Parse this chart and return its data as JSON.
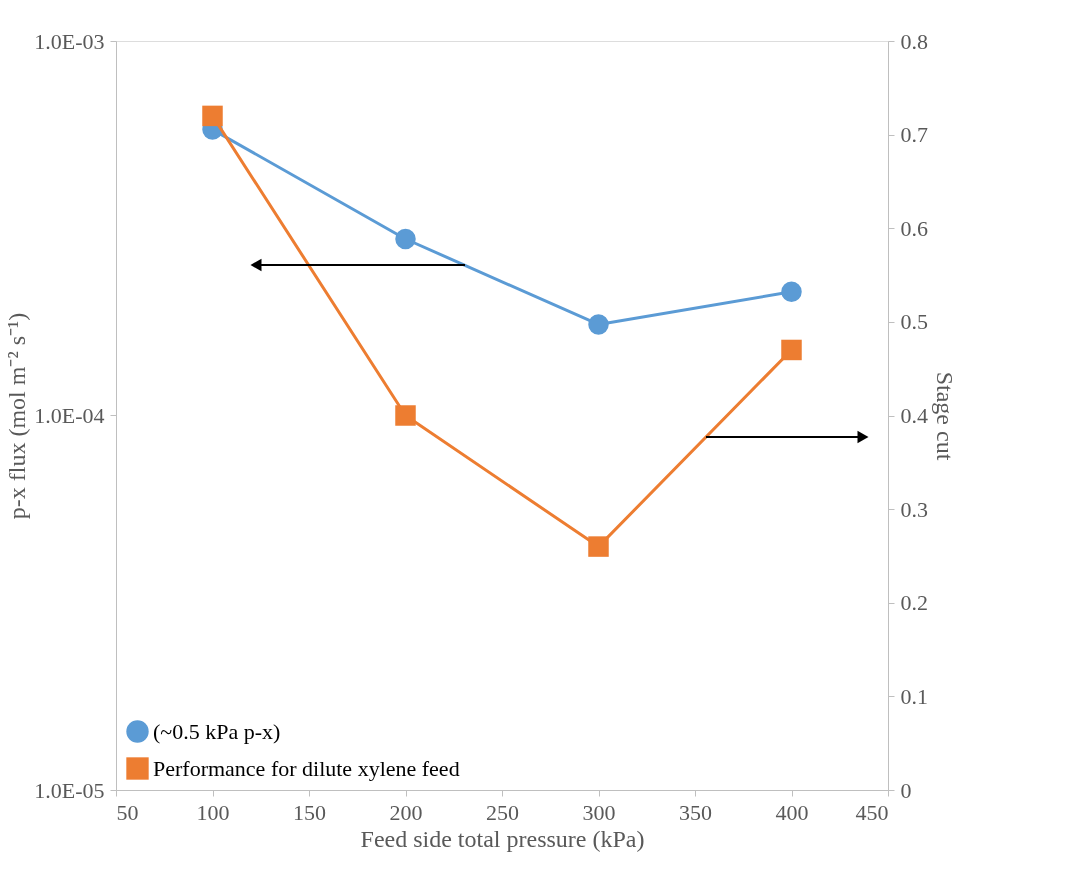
{
  "chart_data": {
    "type": "line",
    "xlabel": "Feed side total pressure (kPa)",
    "ylabel": "p-x flux (mol m⁻² s⁻¹)",
    "y2label": "Stage cut",
    "x": [
      100,
      200,
      300,
      400
    ],
    "series": [
      {
        "name": "(~0.5 kPa p-x)",
        "color": "#5b9bd5",
        "values": [
          0.00058,
          0.000296,
          0.000175,
          0.000214
        ],
        "marker": "circle"
      },
      {
        "name": "Performance for dilute xylene feed",
        "color": "#ed7d31",
        "values": [
          0.72,
          0.4,
          0.26,
          0.47
        ],
        "axis": "y2",
        "marker": "square"
      }
    ],
    "xlim": [
      50,
      450
    ],
    "xticks": [
      50,
      100,
      150,
      200,
      250,
      300,
      350,
      400,
      450
    ],
    "ylim": [
      1e-05,
      0.001
    ],
    "yticks": [
      {
        "value": 1e-05,
        "label": "1.0E-05"
      },
      {
        "value": 0.0001,
        "label": "1.0E-04"
      },
      {
        "value": 0.001,
        "label": "1.0E-03"
      }
    ],
    "log": "y",
    "y2lim": [
      0,
      0.8
    ],
    "y2ticks": [
      0,
      0.1,
      0.2,
      0.3,
      0.4,
      0.5,
      0.6,
      0.7,
      0.8
    ],
    "grid": false,
    "legend": "bottom left"
  }
}
